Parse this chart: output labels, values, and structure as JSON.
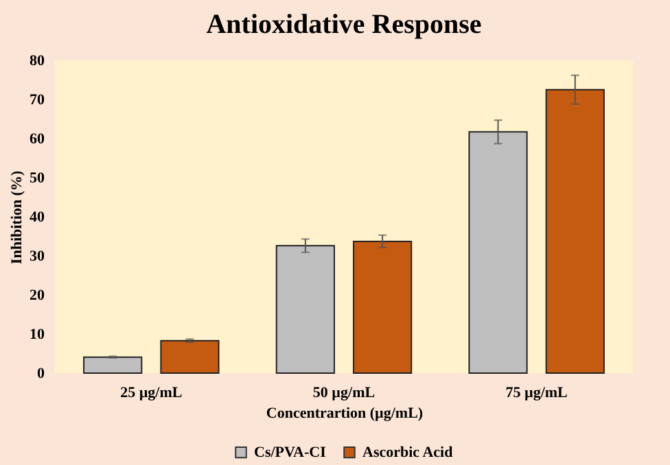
{
  "chart_data": {
    "type": "bar",
    "title": "Antioxidative Response",
    "xlabel": "Concentrartion (µg/mL)",
    "ylabel": "Inhibition (%)",
    "categories": [
      "25 µg/mL",
      "50 µg/mL",
      "75 µg/mL"
    ],
    "series": [
      {
        "name": "Cs/PVA-CI",
        "color": "#bfbfbf",
        "values": [
          4.1,
          32.6,
          61.7
        ],
        "errors": [
          0.2,
          1.7,
          3
        ]
      },
      {
        "name": "Ascorbic Acid",
        "color": "#c55a11",
        "values": [
          8.3,
          33.7,
          72.5
        ],
        "errors": [
          0.4,
          1.6,
          3.7
        ]
      }
    ],
    "ylim": [
      0,
      80
    ],
    "yticks": [
      0,
      10,
      20,
      30,
      40,
      50,
      60,
      70,
      80
    ],
    "grid": false,
    "legend": "bottom"
  }
}
